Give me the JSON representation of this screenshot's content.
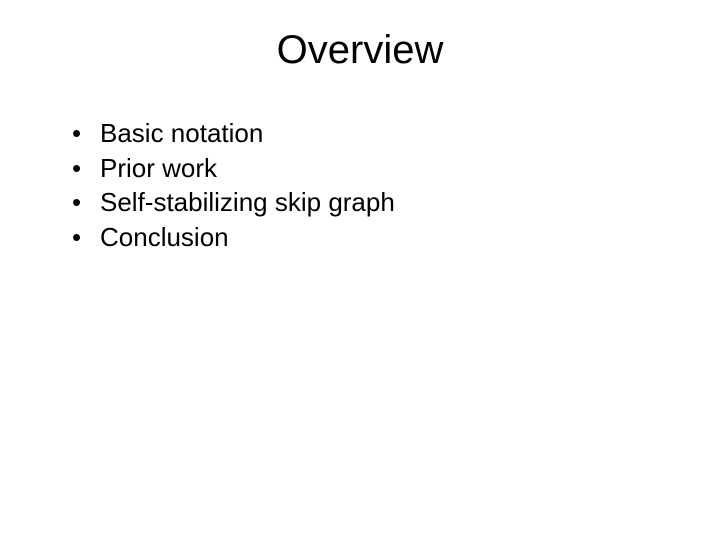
{
  "slide": {
    "title": "Overview",
    "title_fontsize": 40,
    "title_fontweight": "normal",
    "title_align": "center",
    "body_fontsize": 26,
    "background_color": "#ffffff",
    "text_color": "#000000",
    "font_family": "Arial",
    "bullet_marker": "•",
    "items": [
      {
        "text": "Basic notation"
      },
      {
        "text": "Prior work"
      },
      {
        "text": "Self-stabilizing skip graph"
      },
      {
        "text": "Conclusion"
      }
    ]
  }
}
